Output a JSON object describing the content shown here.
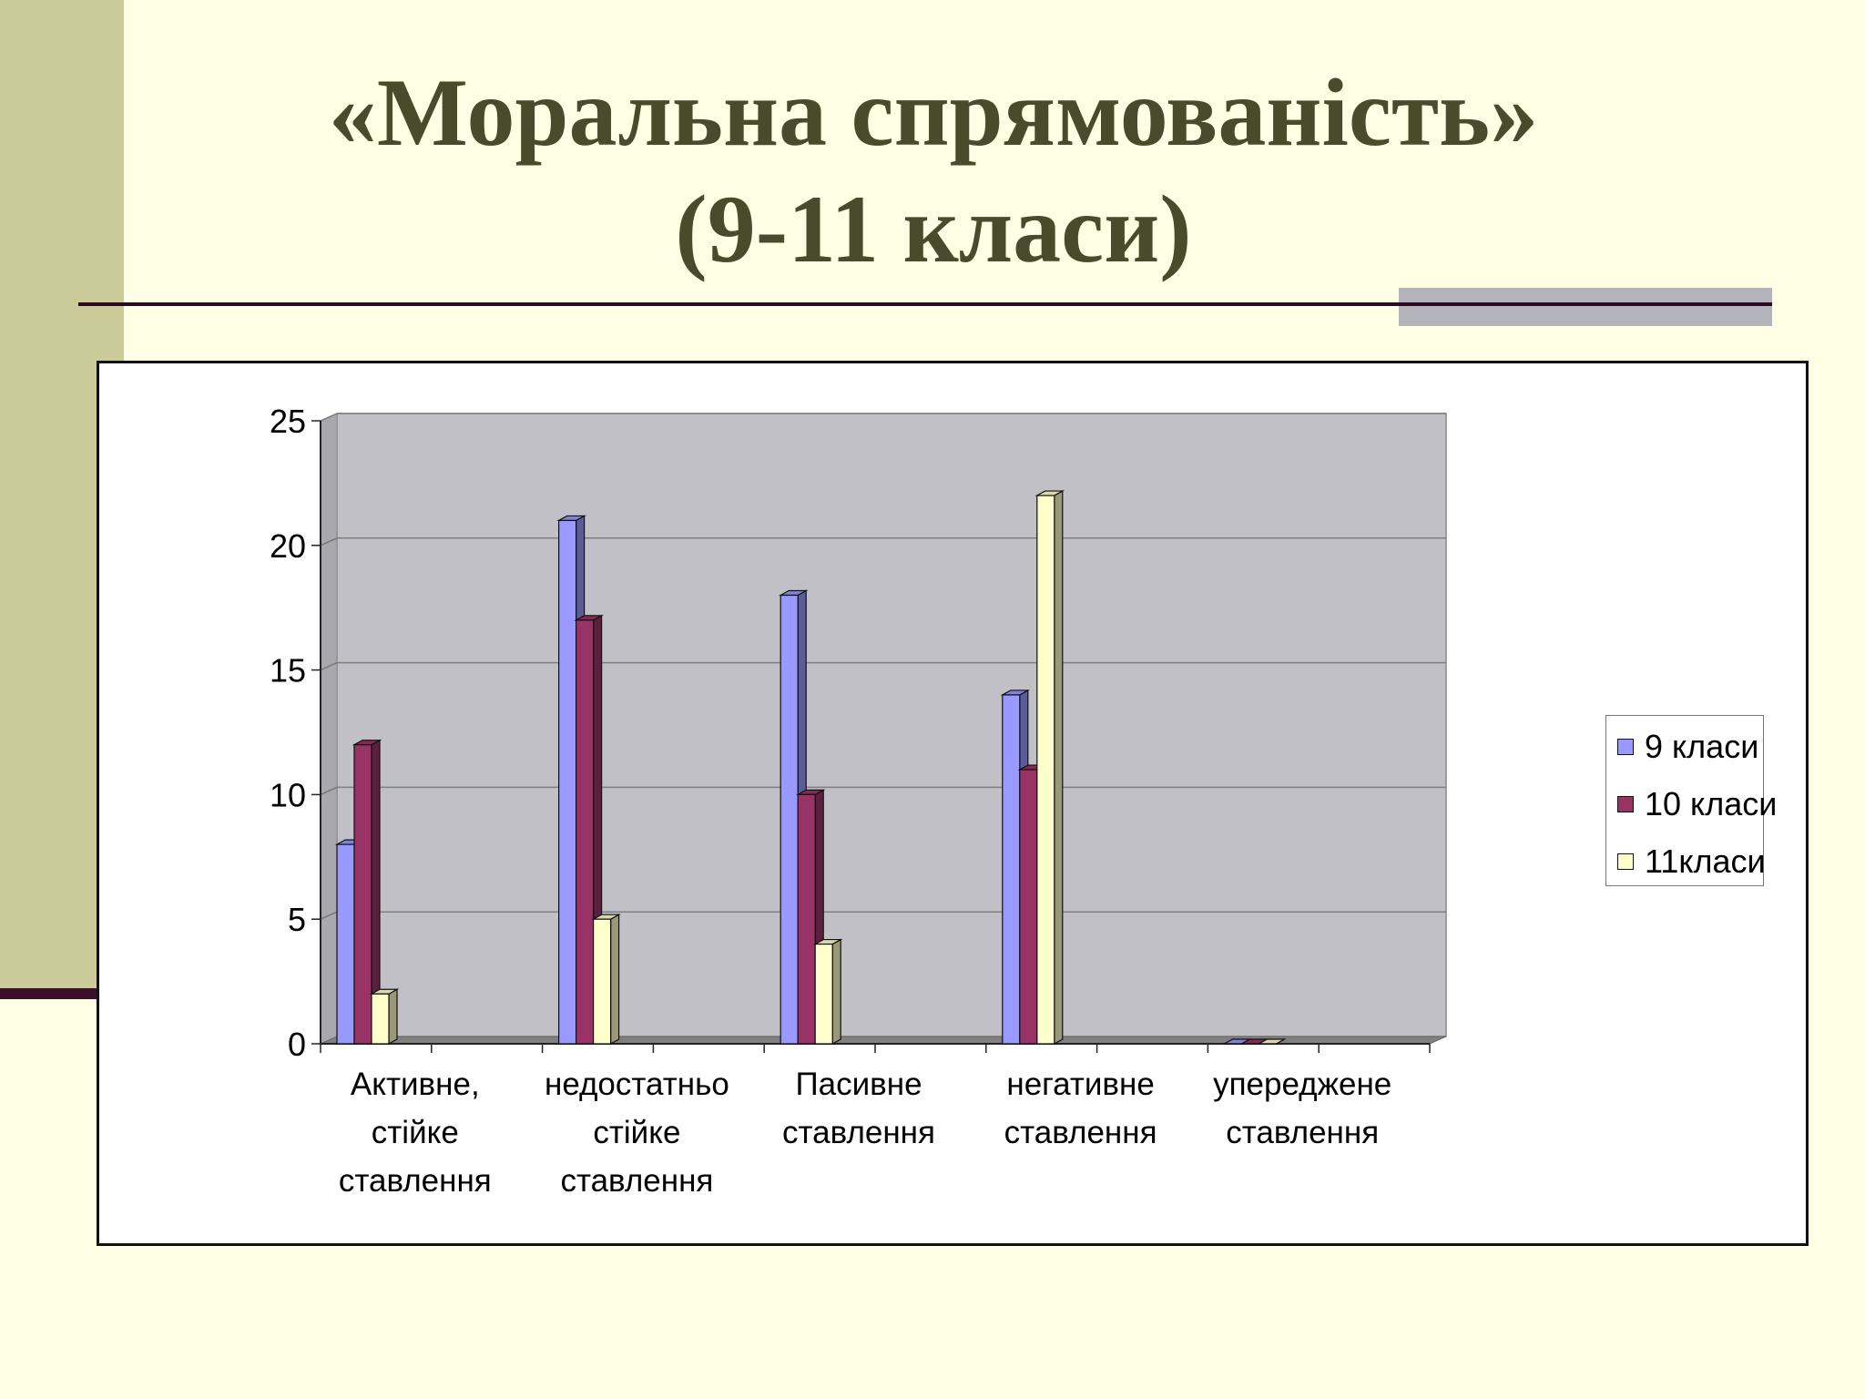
{
  "slide": {
    "title_line1": "«Моральна спрямованість»",
    "title_line2": "(9-11 класи)"
  },
  "colors": {
    "background": "#ffffe6",
    "side_bar": "#cbcb99",
    "accent_line": "#2c0a22",
    "title": "#4a4a2c",
    "plot_area": "#c0c0c0"
  },
  "chart_data": {
    "type": "bar",
    "title": "",
    "xlabel": "",
    "ylabel": "",
    "ylim": [
      0,
      25
    ],
    "yticks": [
      "0",
      "5",
      "10",
      "15",
      "20",
      "25"
    ],
    "grid": true,
    "legend_position": "right",
    "categories": [
      "Активне, стійке ставлення",
      "недостатньо стійке ставлення",
      "Пасивне ставлення",
      "негативне ставлення",
      "упереджене ставлення"
    ],
    "category_lines": [
      [
        "Активне,",
        "стійке",
        "ставлення"
      ],
      [
        "недостатньо",
        "стійке",
        "ставлення"
      ],
      [
        "Пасивне",
        "ставлення"
      ],
      [
        "негативне",
        "ставлення"
      ],
      [
        "упереджене",
        "ставлення"
      ]
    ],
    "series": [
      {
        "name": "9 класи",
        "color": "#9999ff",
        "values": [
          8,
          21,
          18,
          14,
          0
        ]
      },
      {
        "name": "10 класи",
        "color": "#993366",
        "values": [
          12,
          17,
          10,
          11,
          0
        ]
      },
      {
        "name": "11класи",
        "color": "#ffffcc",
        "values": [
          2,
          5,
          4,
          22,
          0
        ]
      }
    ]
  }
}
